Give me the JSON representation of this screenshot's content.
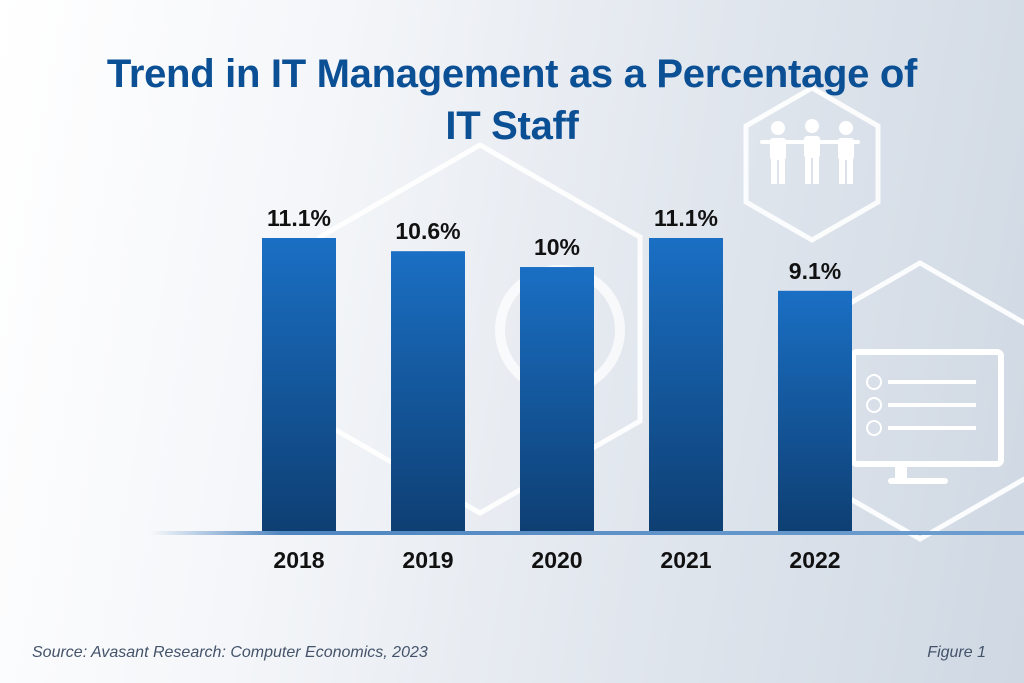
{
  "title": "Trend in IT Management as a Percentage of IT Staff",
  "source": "Source: Avasant Research: Computer Economics, 2023",
  "figure_label": "Figure 1",
  "colors": {
    "title": "#0b4f94",
    "bar_top": "#1a6fc4",
    "bar_bottom": "#0e3f73",
    "label": "#111111"
  },
  "decorations": [
    "people-icon",
    "monitor-checklist-icon",
    "hexagon-outline"
  ],
  "chart_data": {
    "type": "bar",
    "title": "Trend in IT Management as a Percentage of IT Staff",
    "xlabel": "",
    "ylabel": "",
    "categories": [
      "2018",
      "2019",
      "2020",
      "2021",
      "2022"
    ],
    "values": [
      11.1,
      10.6,
      10.0,
      11.1,
      9.1
    ],
    "data_labels": [
      "11.1%",
      "10.6%",
      "10%",
      "11.1%",
      "9.1%"
    ],
    "unit": "%",
    "ylim": [
      0,
      11.1
    ],
    "grid": false,
    "legend": "none"
  }
}
